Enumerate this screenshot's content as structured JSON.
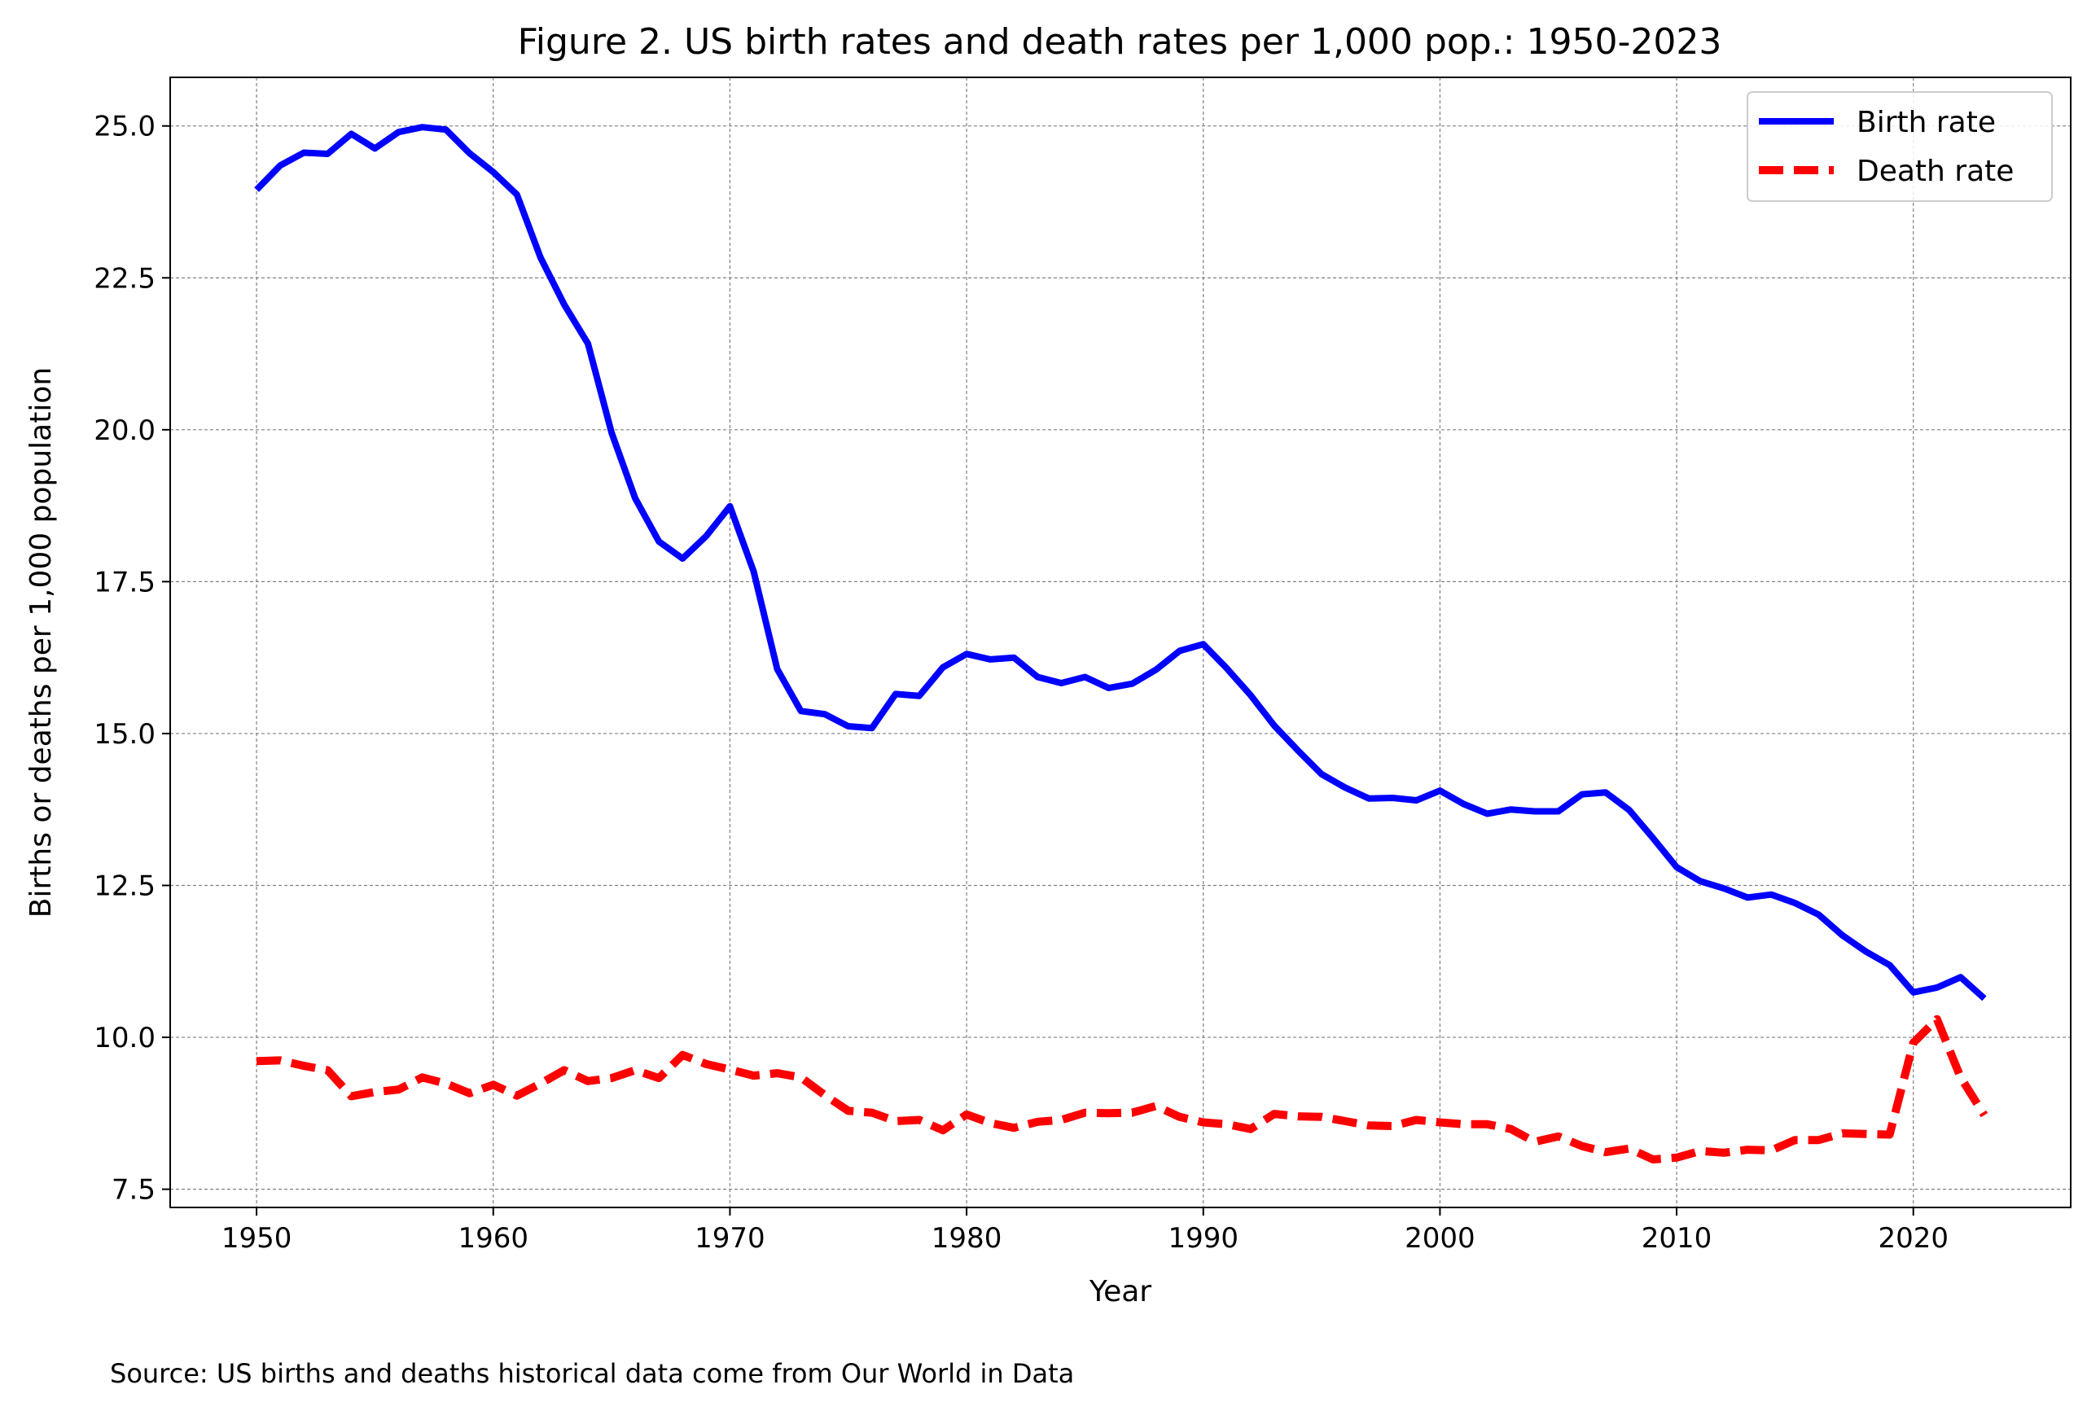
{
  "chart_data": {
    "type": "line",
    "title": "Figure 2. US birth rates and death rates per 1,000 pop.: 1950-2023",
    "xlabel": "Year",
    "ylabel": "Births or deaths per 1,000 population",
    "xlim": [
      1946.35,
      2026.65
    ],
    "ylim": [
      7.2,
      25.8
    ],
    "xticks": [
      1950,
      1960,
      1970,
      1980,
      1990,
      2000,
      2010,
      2020
    ],
    "xtick_labels": [
      "1950",
      "1960",
      "1970",
      "1980",
      "1990",
      "2000",
      "2010",
      "2020"
    ],
    "yticks": [
      7.5,
      10.0,
      12.5,
      15.0,
      17.5,
      20.0,
      22.5,
      25.0
    ],
    "ytick_labels": [
      "7.5",
      "10.0",
      "12.5",
      "15.0",
      "17.5",
      "20.0",
      "22.5",
      "25.0"
    ],
    "grid": true,
    "legend_position": "top-right",
    "x": [
      1950,
      1951,
      1952,
      1953,
      1954,
      1955,
      1956,
      1957,
      1958,
      1959,
      1960,
      1961,
      1962,
      1963,
      1964,
      1965,
      1966,
      1967,
      1968,
      1969,
      1970,
      1971,
      1972,
      1973,
      1974,
      1975,
      1976,
      1977,
      1978,
      1979,
      1980,
      1981,
      1982,
      1983,
      1984,
      1985,
      1986,
      1987,
      1988,
      1989,
      1990,
      1991,
      1992,
      1993,
      1994,
      1995,
      1996,
      1997,
      1998,
      1999,
      2000,
      2001,
      2002,
      2003,
      2004,
      2005,
      2006,
      2007,
      2008,
      2009,
      2010,
      2011,
      2012,
      2013,
      2014,
      2015,
      2016,
      2017,
      2018,
      2019,
      2020,
      2021,
      2022,
      2023
    ],
    "series": [
      {
        "name": "Birth rate",
        "color": "#0000ff",
        "style": "solid",
        "values": [
          23.95,
          24.35,
          24.56,
          24.54,
          24.87,
          24.63,
          24.9,
          24.98,
          24.94,
          24.55,
          24.24,
          23.87,
          22.83,
          22.06,
          21.42,
          19.95,
          18.87,
          18.16,
          17.88,
          18.25,
          18.74,
          17.67,
          16.06,
          15.37,
          15.32,
          15.12,
          15.09,
          15.65,
          15.62,
          16.09,
          16.31,
          16.22,
          16.25,
          15.93,
          15.83,
          15.93,
          15.75,
          15.82,
          16.05,
          16.36,
          16.47,
          16.07,
          15.63,
          15.13,
          14.72,
          14.33,
          14.11,
          13.93,
          13.94,
          13.9,
          14.06,
          13.84,
          13.68,
          13.75,
          13.72,
          13.72,
          14.0,
          14.03,
          13.74,
          13.28,
          12.8,
          12.57,
          12.45,
          12.3,
          12.35,
          12.21,
          12.02,
          11.68,
          11.41,
          11.19,
          10.74,
          10.82,
          10.99,
          10.64
        ]
      },
      {
        "name": "Death rate",
        "color": "#ff0000",
        "style": "dashed",
        "values": [
          9.61,
          9.62,
          9.53,
          9.46,
          9.03,
          9.1,
          9.14,
          9.34,
          9.24,
          9.08,
          9.22,
          9.04,
          9.24,
          9.46,
          9.28,
          9.33,
          9.46,
          9.33,
          9.71,
          9.56,
          9.47,
          9.37,
          9.41,
          9.34,
          9.05,
          8.79,
          8.76,
          8.62,
          8.64,
          8.47,
          8.73,
          8.59,
          8.51,
          8.61,
          8.64,
          8.76,
          8.75,
          8.76,
          8.87,
          8.69,
          8.6,
          8.57,
          8.49,
          8.74,
          8.7,
          8.69,
          8.62,
          8.55,
          8.54,
          8.64,
          8.6,
          8.57,
          8.57,
          8.49,
          8.28,
          8.37,
          8.21,
          8.11,
          8.17,
          7.99,
          8.02,
          8.13,
          8.1,
          8.15,
          8.14,
          8.31,
          8.31,
          8.42,
          8.41,
          8.4,
          9.91,
          10.3,
          9.34,
          8.72
        ]
      }
    ]
  },
  "source_note": "Source: US births and deaths historical data come from Our World in Data"
}
